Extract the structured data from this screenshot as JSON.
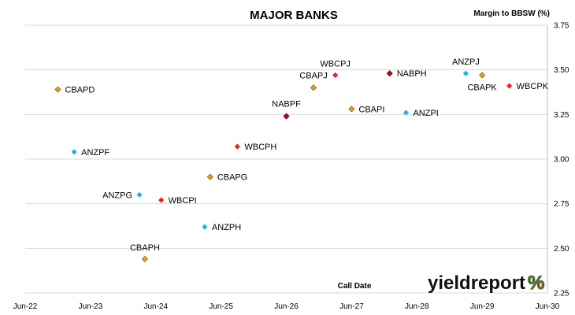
{
  "chart_data": {
    "type": "scatter",
    "title": "MAJOR BANKS",
    "ylabel": "Margin to BBSW (%)",
    "xlabel": "Call Date",
    "ylim": [
      2.25,
      3.75
    ],
    "y_ticks": [
      "2.25",
      "2.50",
      "2.75",
      "3.00",
      "3.25",
      "3.50",
      "3.75"
    ],
    "xlim": [
      "2022-06",
      "2030-06"
    ],
    "x_ticks": [
      "Jun-22",
      "Jun-23",
      "Jun-24",
      "Jun-25",
      "Jun-26",
      "Jun-27",
      "Jun-28",
      "Jun-29",
      "Jun-30"
    ],
    "grid": "horizontal",
    "legend": "none",
    "colors": {
      "CBA": "#e5a11c",
      "ANZ": "#1ab4e8",
      "WBC": "#ff1a1a",
      "NAB": "#c0000f"
    },
    "points": [
      {
        "label": "CBAPD",
        "x": "2022-12",
        "y": 3.39,
        "bank": "CBA"
      },
      {
        "label": "ANZPF",
        "x": "2023-03",
        "y": 3.04,
        "bank": "ANZ"
      },
      {
        "label": "ANZPG",
        "x": "2024-03",
        "y": 2.8,
        "bank": "ANZ"
      },
      {
        "label": "CBAPH",
        "x": "2024-04",
        "y": 2.44,
        "bank": "CBA"
      },
      {
        "label": "WBCPI",
        "x": "2024-07",
        "y": 2.77,
        "bank": "WBC"
      },
      {
        "label": "ANZPH",
        "x": "2025-03",
        "y": 2.62,
        "bank": "ANZ"
      },
      {
        "label": "CBAPG",
        "x": "2025-04",
        "y": 2.9,
        "bank": "CBA"
      },
      {
        "label": "WBCPH",
        "x": "2025-09",
        "y": 3.07,
        "bank": "WBC"
      },
      {
        "label": "NABPF",
        "x": "2026-06",
        "y": 3.24,
        "bank": "NAB"
      },
      {
        "label": "CBAPJ",
        "x": "2026-11",
        "y": 3.4,
        "bank": "CBA"
      },
      {
        "label": "WBCPJ",
        "x": "2027-03",
        "y": 3.47,
        "bank": "WBC"
      },
      {
        "label": "CBAPI",
        "x": "2027-06",
        "y": 3.28,
        "bank": "CBA"
      },
      {
        "label": "NABPH",
        "x": "2028-01",
        "y": 3.48,
        "bank": "NAB"
      },
      {
        "label": "ANZPI",
        "x": "2028-04",
        "y": 3.26,
        "bank": "ANZ"
      },
      {
        "label": "ANZPJ",
        "x": "2029-03",
        "y": 3.48,
        "bank": "ANZ"
      },
      {
        "label": "CBAPK",
        "x": "2029-06",
        "y": 3.47,
        "bank": "CBA"
      },
      {
        "label": "WBCPK",
        "x": "2029-11",
        "y": 3.41,
        "bank": "WBC"
      }
    ]
  },
  "brand": {
    "text_main": "yieldreport",
    "text_mark": "%",
    "color_main": "#111111",
    "color_mark_green": "#2e8b3a",
    "color_mark_red": "#d0202a"
  }
}
